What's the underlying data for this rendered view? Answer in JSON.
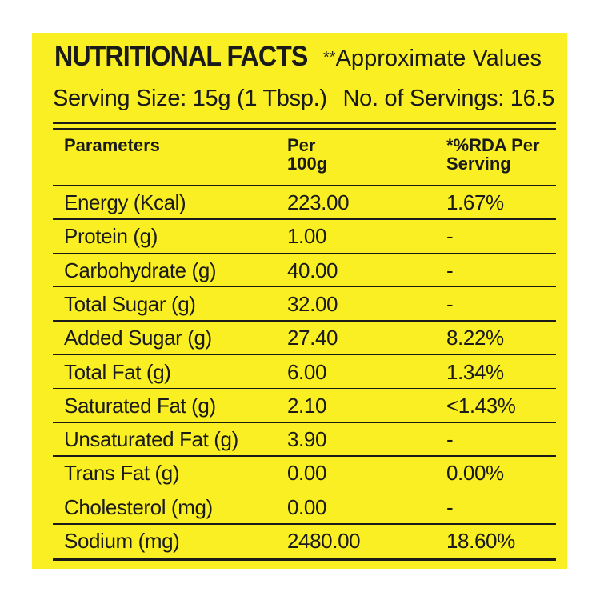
{
  "header": {
    "title": "NUTRITIONAL FACTS",
    "approx_stars": "**",
    "approx_text": "Approximate Values"
  },
  "serving": {
    "size": "Serving Size: 15g (1 Tbsp.)",
    "count": "No. of Servings: 16.5"
  },
  "table": {
    "headers": {
      "parameters": "Parameters",
      "per100_line1": "Per",
      "per100_line2": "100g",
      "rda_line1": "*%RDA Per",
      "rda_line2": "Serving"
    },
    "rows": [
      {
        "parameter": "Energy (Kcal)",
        "per100g": "223.00",
        "rda": "1.67%"
      },
      {
        "parameter": "Protein (g)",
        "per100g": "1.00",
        "rda": "-"
      },
      {
        "parameter": "Carbohydrate (g)",
        "per100g": "40.00",
        "rda": "-"
      },
      {
        "parameter": "Total Sugar (g)",
        "per100g": "32.00",
        "rda": "-"
      },
      {
        "parameter": "Added Sugar (g)",
        "per100g": "27.40",
        "rda": "8.22%"
      },
      {
        "parameter": "Total Fat (g)",
        "per100g": "6.00",
        "rda": "1.34%"
      },
      {
        "parameter": "Saturated Fat (g)",
        "per100g": "2.10",
        "rda": "<1.43%"
      },
      {
        "parameter": "Unsaturated Fat (g)",
        "per100g": "3.90",
        "rda": "-"
      },
      {
        "parameter": "Trans Fat (g)",
        "per100g": "0.00",
        "rda": "0.00%"
      },
      {
        "parameter": "Cholesterol (mg)",
        "per100g": "0.00",
        "rda": "-"
      },
      {
        "parameter": "Sodium (mg)",
        "per100g": "2480.00",
        "rda": "18.60%"
      }
    ]
  },
  "colors": {
    "panel_background": "#f9ef23",
    "text": "#1a1a1a",
    "page_background": "#ffffff"
  }
}
